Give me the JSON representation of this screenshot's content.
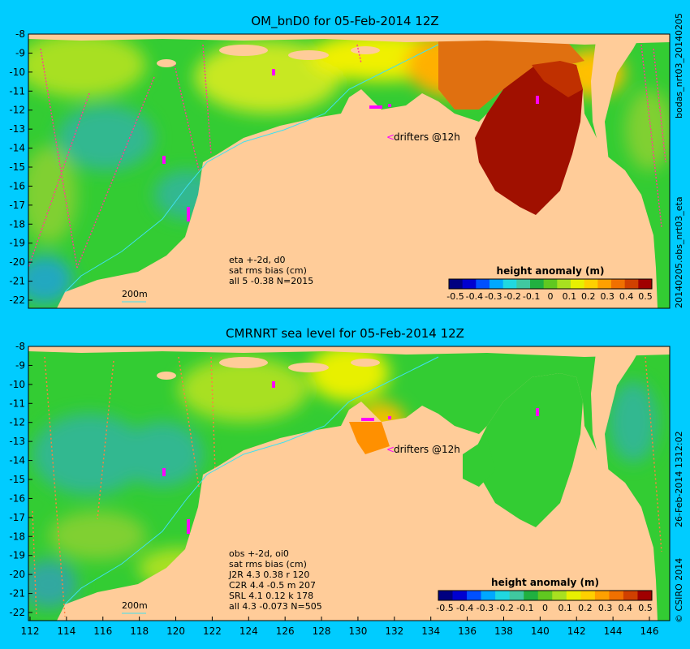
{
  "panels": [
    {
      "title": "OM_bnD0 for 05-Feb-2014 12Z",
      "side_top": "bodas_nrt03_20140205",
      "side_bottom": "20140205.obs_nrt03_eta",
      "drifters_label": "drifters @12h",
      "scale_label": "200m",
      "stats": [
        "eta +-2d, d0",
        "sat rms bias (cm)",
        "all 5 -0.38 N=2015"
      ]
    },
    {
      "title": "CMRNRT sea level  for 05-Feb-2014 12Z",
      "side_top": "26-Feb-2014 1312:02",
      "side_bottom": "© CSIRO 2014",
      "drifters_label": "drifters @12h",
      "scale_label": "200m",
      "stats": [
        "obs +-2d, oi0",
        "sat rms bias (cm)",
        "J2R   4.3 0.38 r 120",
        "C2R   4.4 -0.5 m 207",
        "SRL   4.1 0.12 k 178",
        "all   4.3 -0.073 N=505"
      ]
    }
  ],
  "colorbar": {
    "title": "height anomaly (m)",
    "ticks": [
      "-0.5",
      "-0.4",
      "-0.3",
      "-0.2",
      "-0.1",
      "0",
      "0.1",
      "0.2",
      "0.3",
      "0.4",
      "0.5"
    ],
    "colors": [
      "#000080",
      "#0000d0",
      "#0050ff",
      "#00a8ff",
      "#20d8e0",
      "#40c8a0",
      "#20b040",
      "#60c820",
      "#a8e020",
      "#e8f000",
      "#ffd000",
      "#ffa000",
      "#f07000",
      "#d04000",
      "#a00000"
    ]
  },
  "axes": {
    "x_ticks": [
      "112",
      "114",
      "116",
      "118",
      "120",
      "122",
      "124",
      "126",
      "128",
      "130",
      "132",
      "134",
      "136",
      "138",
      "140",
      "142",
      "144",
      "146"
    ],
    "y_ticks": [
      "-8",
      "-9",
      "-10",
      "-11",
      "-12",
      "-13",
      "-14",
      "-15",
      "-16",
      "-17",
      "-18",
      "-19",
      "-20",
      "-21",
      "-22"
    ]
  },
  "colors": {
    "background": "#00ccff",
    "land": "#ffcc99",
    "ocean": "#33cc33",
    "positive_anomaly": "#ffd000",
    "strong_positive": "#a01000",
    "negative_anomaly": "#30b0a0",
    "drifter": "#ff00ff",
    "isobath": "#40e0f0"
  }
}
